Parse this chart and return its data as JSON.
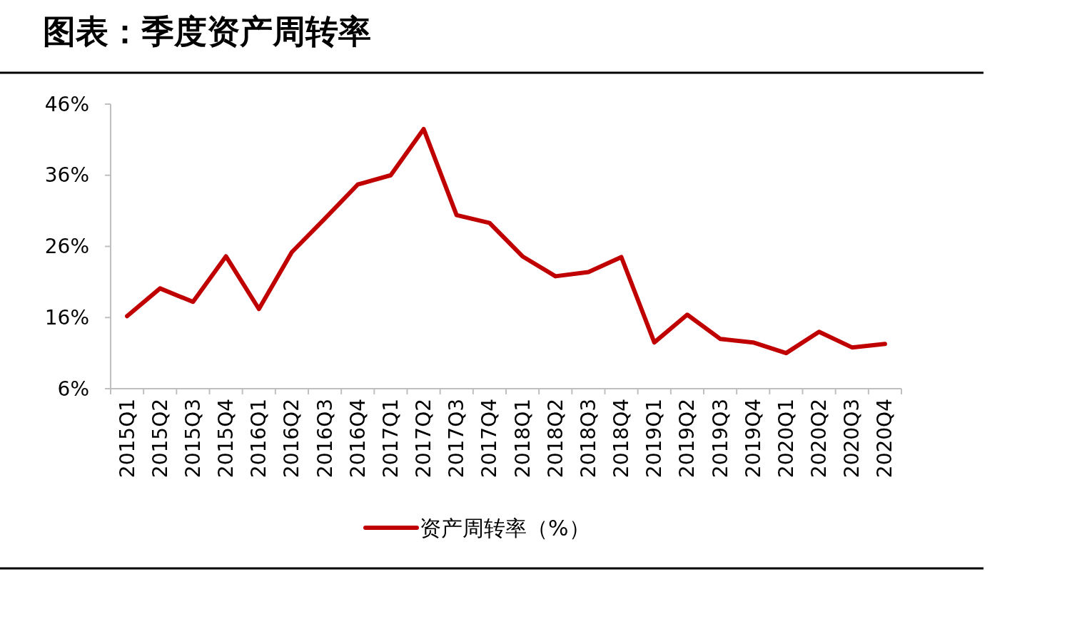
{
  "chart_data": {
    "type": "line",
    "title": "图表：季度资产周转率",
    "categories": [
      "2015Q1",
      "2015Q2",
      "2015Q3",
      "2015Q4",
      "2016Q1",
      "2016Q2",
      "2016Q3",
      "2016Q4",
      "2017Q1",
      "2017Q2",
      "2017Q3",
      "2017Q4",
      "2018Q1",
      "2018Q2",
      "2018Q3",
      "2018Q4",
      "2019Q1",
      "2019Q2",
      "2019Q3",
      "2019Q4",
      "2020Q1",
      "2020Q2",
      "2020Q3",
      "2020Q4"
    ],
    "series": [
      {
        "name": "资产周转率（%）",
        "color": "#c00000",
        "values": [
          16.2,
          20.1,
          18.2,
          24.6,
          17.2,
          25.2,
          29.9,
          34.7,
          36.0,
          42.5,
          30.4,
          29.3,
          24.6,
          21.8,
          22.4,
          24.5,
          12.5,
          16.4,
          13.0,
          12.5,
          11.0,
          14.0,
          11.8,
          12.3
        ]
      }
    ],
    "ylim": [
      6,
      46
    ],
    "yticks": [
      {
        "value": 6,
        "label": "6%"
      },
      {
        "value": 16,
        "label": "16%"
      },
      {
        "value": 26,
        "label": "26%"
      },
      {
        "value": 36,
        "label": "36%"
      },
      {
        "value": 46,
        "label": "46%"
      }
    ],
    "grid": false,
    "legend": "bottom",
    "marker": "none",
    "line_style": "solid"
  }
}
